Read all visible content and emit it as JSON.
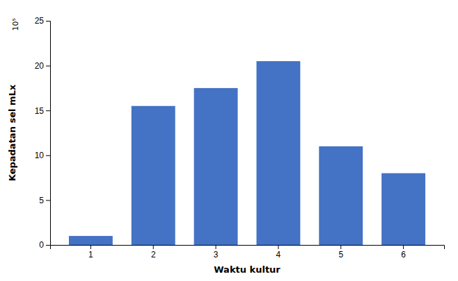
{
  "chart_data": {
    "type": "bar",
    "categories": [
      1,
      2,
      3,
      4,
      5,
      6
    ],
    "values": [
      1.0,
      15.5,
      17.5,
      20.5,
      11.0,
      8.0
    ],
    "color": "#4472C4",
    "xlabel": "Waktu kultur",
    "ylabel": "Kepadatan sel mLx",
    "annotations": [
      "10⁵"
    ],
    "ylim": [
      0,
      25
    ],
    "yticks": [
      0,
      5,
      10,
      15,
      20,
      25
    ],
    "grid": false
  }
}
